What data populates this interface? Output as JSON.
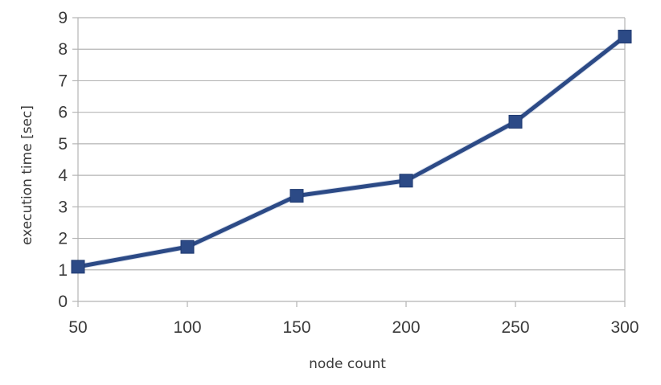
{
  "chart_data": {
    "type": "line",
    "title": "",
    "xlabel": "node count",
    "ylabel": "execution time  [sec]",
    "x": [
      50,
      100,
      150,
      200,
      250,
      300
    ],
    "series": [
      {
        "values": [
          1.1,
          1.73,
          3.35,
          3.83,
          5.7,
          8.4
        ]
      }
    ],
    "xlim": [
      50,
      300
    ],
    "ylim": [
      0,
      9
    ],
    "y_ticks": [
      0,
      1,
      2,
      3,
      4,
      5,
      6,
      7,
      8,
      9
    ],
    "x_ticks": [
      50,
      100,
      150,
      200,
      250,
      300
    ],
    "grid": "horizontal",
    "legend": "none",
    "colors": {
      "line": "#2c4a86",
      "marker": "#2c4a86",
      "grid": "#b4b4b4",
      "axis": "#b4b4b4"
    },
    "marker": "square"
  }
}
